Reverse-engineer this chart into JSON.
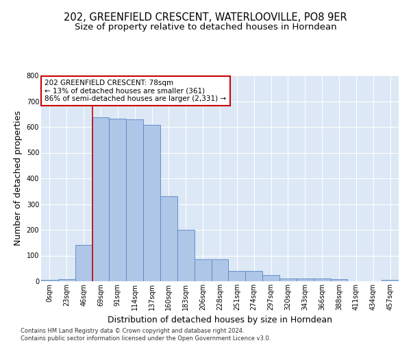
{
  "title": "202, GREENFIELD CRESCENT, WATERLOOVILLE, PO8 9ER",
  "subtitle": "Size of property relative to detached houses in Horndean",
  "xlabel": "Distribution of detached houses by size in Horndean",
  "ylabel": "Number of detached properties",
  "bin_labels": [
    "0sqm",
    "23sqm",
    "46sqm",
    "69sqm",
    "91sqm",
    "114sqm",
    "137sqm",
    "160sqm",
    "183sqm",
    "206sqm",
    "228sqm",
    "251sqm",
    "274sqm",
    "297sqm",
    "320sqm",
    "343sqm",
    "366sqm",
    "388sqm",
    "411sqm",
    "434sqm",
    "457sqm"
  ],
  "bar_values": [
    5,
    8,
    142,
    637,
    633,
    630,
    608,
    330,
    200,
    85,
    85,
    40,
    40,
    25,
    12,
    11,
    11,
    9,
    0,
    0,
    5
  ],
  "bar_color": "#aec6e8",
  "bar_edge_color": "#5585c0",
  "vline_x_index": 3,
  "vline_color": "#cc0000",
  "annotation_text": "202 GREENFIELD CRESCENT: 78sqm\n← 13% of detached houses are smaller (361)\n86% of semi-detached houses are larger (2,331) →",
  "annotation_box_color": "#ffffff",
  "annotation_box_edge": "#cc0000",
  "ylim": [
    0,
    800
  ],
  "yticks": [
    0,
    100,
    200,
    300,
    400,
    500,
    600,
    700,
    800
  ],
  "bg_color": "#dce8f5",
  "grid_color": "#ffffff",
  "footer_text": "Contains HM Land Registry data © Crown copyright and database right 2024.\nContains public sector information licensed under the Open Government Licence v3.0.",
  "title_fontsize": 10.5,
  "subtitle_fontsize": 9.5,
  "xlabel_fontsize": 9,
  "ylabel_fontsize": 9,
  "tick_fontsize": 7,
  "footer_fontsize": 6
}
